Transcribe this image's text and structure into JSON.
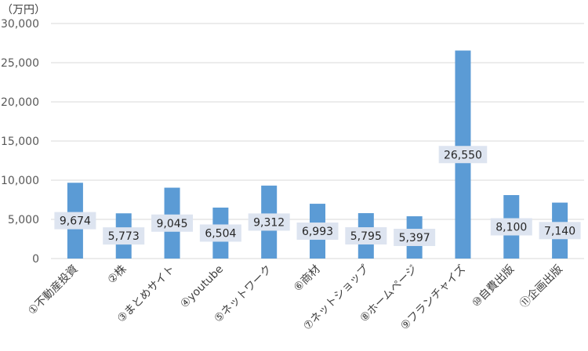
{
  "chart_data": {
    "type": "bar",
    "unit_label": "（万円）",
    "categories": [
      "①不動産投資",
      "②株",
      "③まとめサイト",
      "④youtube",
      "⑤ネットワーク",
      "⑥商材",
      "⑦ネットショップ",
      "⑧ホームページ",
      "⑨フランチャイズ",
      "⑩自費出版",
      "⑪企画出版"
    ],
    "values": [
      9674,
      5773,
      9045,
      6504,
      9312,
      6993,
      5795,
      5397,
      26550,
      8100,
      7140
    ],
    "data_labels": [
      "9,674",
      "5,773",
      "9,045",
      "6,504",
      "9,312",
      "6,993",
      "5,795",
      "5,397",
      "26,550",
      "8,100",
      "7,140"
    ],
    "ylim": [
      0,
      30000
    ],
    "yticks": [
      0,
      5000,
      10000,
      15000,
      20000,
      25000,
      30000
    ],
    "ytick_labels": [
      "0",
      "5,000",
      "10,000",
      "15,000",
      "20,000",
      "25,000",
      "30,000"
    ],
    "grid": true,
    "legend": "none",
    "bar_color": "#5b9bd5",
    "label_box_color": "#dde4f0",
    "grid_color": "#d9d9d9"
  }
}
